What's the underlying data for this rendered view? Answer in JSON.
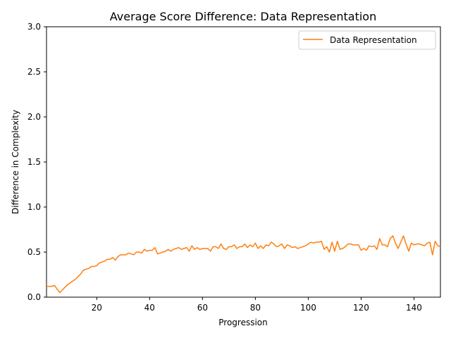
{
  "chart_data": {
    "type": "line",
    "title": "Average Score Difference: Data Representation",
    "xlabel": "Progression",
    "ylabel": "Difference in Complexity",
    "xlim": [
      1,
      150
    ],
    "ylim": [
      0.0,
      3.0
    ],
    "x_ticks": [
      20,
      40,
      60,
      80,
      100,
      120,
      140
    ],
    "x_tick_labels": [
      "20",
      "40",
      "60",
      "80",
      "100",
      "120",
      "140"
    ],
    "y_ticks": [
      0.0,
      0.5,
      1.0,
      1.5,
      2.0,
      2.5,
      3.0
    ],
    "y_tick_labels": [
      "0.0",
      "0.5",
      "1.0",
      "1.5",
      "2.0",
      "2.5",
      "3.0"
    ],
    "grid": false,
    "legend_position": "top-right",
    "series": [
      {
        "name": "Data Representation",
        "color": "#ff7f0e",
        "x": [
          1,
          2,
          3,
          4,
          5,
          6,
          7,
          8,
          9,
          10,
          11,
          12,
          13,
          14,
          15,
          16,
          17,
          18,
          19,
          20,
          21,
          22,
          23,
          24,
          25,
          26,
          27,
          28,
          29,
          30,
          31,
          32,
          33,
          34,
          35,
          36,
          37,
          38,
          39,
          40,
          41,
          42,
          43,
          44,
          45,
          46,
          47,
          48,
          49,
          50,
          51,
          52,
          53,
          54,
          55,
          56,
          57,
          58,
          59,
          60,
          61,
          62,
          63,
          64,
          65,
          66,
          67,
          68,
          69,
          70,
          71,
          72,
          73,
          74,
          75,
          76,
          77,
          78,
          79,
          80,
          81,
          82,
          83,
          84,
          85,
          86,
          87,
          88,
          89,
          90,
          91,
          92,
          93,
          94,
          95,
          96,
          97,
          98,
          99,
          100,
          101,
          102,
          103,
          104,
          105,
          106,
          107,
          108,
          109,
          110,
          111,
          112,
          113,
          114,
          115,
          116,
          117,
          118,
          119,
          120,
          121,
          122,
          123,
          124,
          125,
          126,
          127,
          128,
          129,
          130,
          131,
          132,
          133,
          134,
          135,
          136,
          137,
          138,
          139,
          140,
          141,
          142,
          143,
          144,
          145,
          146,
          147,
          148,
          149,
          150
        ],
        "values": [
          0.12,
          0.12,
          0.12,
          0.13,
          0.09,
          0.05,
          0.08,
          0.11,
          0.14,
          0.16,
          0.18,
          0.2,
          0.23,
          0.26,
          0.3,
          0.31,
          0.32,
          0.34,
          0.34,
          0.35,
          0.38,
          0.39,
          0.4,
          0.42,
          0.42,
          0.44,
          0.41,
          0.45,
          0.47,
          0.47,
          0.47,
          0.49,
          0.48,
          0.47,
          0.5,
          0.5,
          0.49,
          0.53,
          0.51,
          0.52,
          0.52,
          0.55,
          0.48,
          0.49,
          0.5,
          0.51,
          0.53,
          0.51,
          0.53,
          0.54,
          0.55,
          0.53,
          0.54,
          0.55,
          0.51,
          0.57,
          0.53,
          0.55,
          0.53,
          0.54,
          0.54,
          0.54,
          0.51,
          0.56,
          0.56,
          0.54,
          0.59,
          0.54,
          0.53,
          0.56,
          0.56,
          0.58,
          0.54,
          0.56,
          0.56,
          0.59,
          0.55,
          0.58,
          0.56,
          0.6,
          0.54,
          0.57,
          0.54,
          0.58,
          0.57,
          0.61,
          0.59,
          0.56,
          0.57,
          0.59,
          0.54,
          0.58,
          0.57,
          0.55,
          0.56,
          0.54,
          0.55,
          0.56,
          0.57,
          0.59,
          0.61,
          0.6,
          0.61,
          0.61,
          0.62,
          0.53,
          0.56,
          0.5,
          0.61,
          0.51,
          0.62,
          0.53,
          0.54,
          0.56,
          0.59,
          0.59,
          0.58,
          0.58,
          0.58,
          0.52,
          0.54,
          0.52,
          0.57,
          0.56,
          0.57,
          0.53,
          0.65,
          0.58,
          0.58,
          0.56,
          0.65,
          0.68,
          0.6,
          0.54,
          0.61,
          0.68,
          0.59,
          0.51,
          0.6,
          0.58,
          0.59,
          0.59,
          0.58,
          0.57,
          0.6,
          0.61,
          0.47,
          0.62,
          0.57,
          0.56
        ]
      }
    ]
  }
}
